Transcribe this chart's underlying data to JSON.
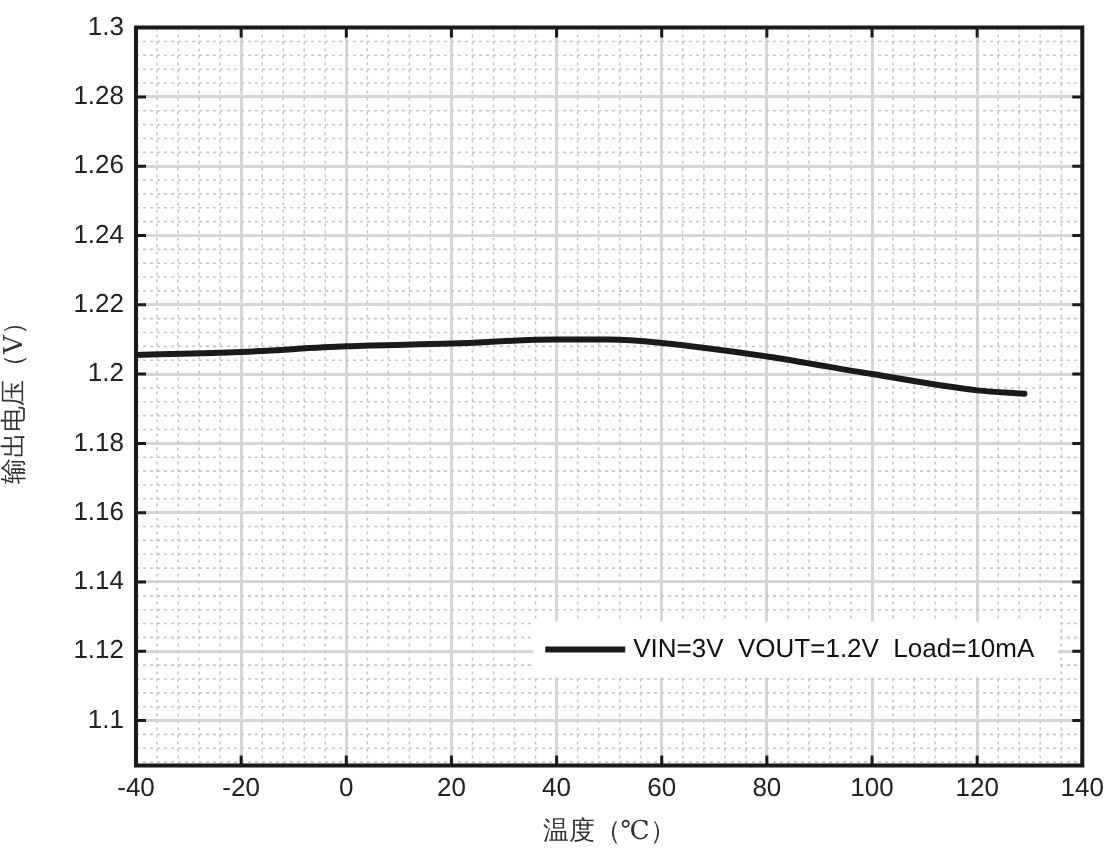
{
  "chart_data": {
    "type": "line",
    "xlabel": "温度（℃）",
    "ylabel": "输出电压（V）",
    "x": [
      -40,
      -20,
      0,
      20,
      40,
      50,
      60,
      80,
      100,
      120,
      129
    ],
    "series": [
      {
        "name": "VIN=3V  VOUT=1.2V  Load=10mA",
        "color": "#1a1a1a",
        "values": [
          1.2055,
          1.2064,
          1.208,
          1.2088,
          1.21,
          1.21,
          1.209,
          1.2051,
          1.2,
          1.1953,
          1.1943
        ]
      }
    ],
    "xlim": [
      -40,
      140
    ],
    "xticks": [
      -40,
      -20,
      0,
      20,
      40,
      60,
      80,
      100,
      120,
      140
    ],
    "ylim": [
      1.087,
      1.3
    ],
    "yticks": [
      1.1,
      1.12,
      1.14,
      1.16,
      1.18,
      1.2,
      1.22,
      1.24,
      1.26,
      1.28,
      1.3
    ],
    "grid": true,
    "legend": "bottom right",
    "marker": "none",
    "line_style": "solid"
  }
}
